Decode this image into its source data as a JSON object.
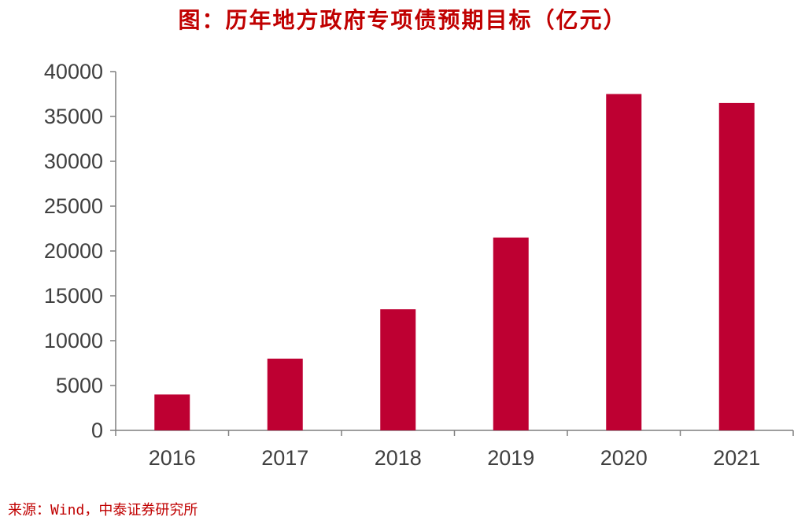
{
  "colors": {
    "title": "#c00000",
    "bar": "#be0032",
    "axis": "#7f7f7f",
    "text": "#404040",
    "source": "#c00000"
  },
  "title": "图：历年地方政府专项债预期目标（亿元）",
  "source": "来源：Wind，中泰证券研究所",
  "chart_data": {
    "type": "bar",
    "title": "图：历年地方政府专项债预期目标（亿元）",
    "xlabel": "",
    "ylabel": "",
    "categories": [
      "2016",
      "2017",
      "2018",
      "2019",
      "2020",
      "2021"
    ],
    "values": [
      4000,
      8000,
      13500,
      21500,
      37500,
      36500
    ],
    "ylim": [
      0,
      40000
    ],
    "yticks": [
      0,
      5000,
      10000,
      15000,
      20000,
      25000,
      30000,
      35000,
      40000
    ],
    "yticklabels": [
      "0",
      "5000",
      "10000",
      "15000",
      "20000",
      "25000",
      "30000",
      "35000",
      "40000"
    ],
    "grid": false,
    "legend": "none",
    "unit": "亿元"
  }
}
